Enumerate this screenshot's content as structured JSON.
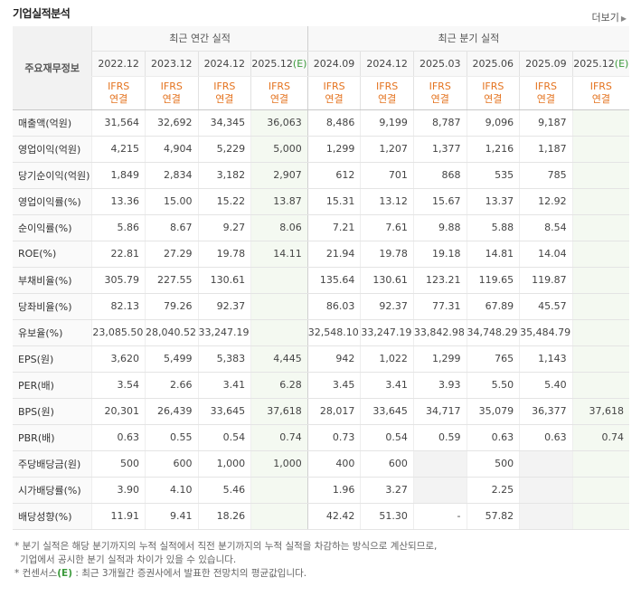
{
  "header": {
    "title": "기업실적분석",
    "more_label": "더보기"
  },
  "table": {
    "corner_label": "주요재무정보",
    "annual_group": "최근 연간 실적",
    "quarter_group": "최근 분기 실적",
    "columns": [
      {
        "period": "2022.12",
        "est": "",
        "std": "IFRS",
        "basis": "연결",
        "is_est": false
      },
      {
        "period": "2023.12",
        "est": "",
        "std": "IFRS",
        "basis": "연결",
        "is_est": false
      },
      {
        "period": "2024.12",
        "est": "",
        "std": "IFRS",
        "basis": "연결",
        "is_est": false
      },
      {
        "period": "2025.12",
        "est": "(E)",
        "std": "IFRS",
        "basis": "연결",
        "is_est": true
      },
      {
        "period": "2024.09",
        "est": "",
        "std": "IFRS",
        "basis": "연결",
        "is_est": false
      },
      {
        "period": "2024.12",
        "est": "",
        "std": "IFRS",
        "basis": "연결",
        "is_est": false
      },
      {
        "period": "2025.03",
        "est": "",
        "std": "IFRS",
        "basis": "연결",
        "is_est": false
      },
      {
        "period": "2025.06",
        "est": "",
        "std": "IFRS",
        "basis": "연결",
        "is_est": false
      },
      {
        "period": "2025.09",
        "est": "",
        "std": "IFRS",
        "basis": "연결",
        "is_est": false
      },
      {
        "period": "2025.12",
        "est": "(E)",
        "std": "IFRS",
        "basis": "연결",
        "is_est": true
      }
    ],
    "rows": [
      {
        "label": "매출액(억원)",
        "values": [
          "31,564",
          "32,692",
          "34,345",
          "36,063",
          "8,486",
          "9,199",
          "8,787",
          "9,096",
          "9,187",
          ""
        ]
      },
      {
        "label": "영업이익(억원)",
        "values": [
          "4,215",
          "4,904",
          "5,229",
          "5,000",
          "1,299",
          "1,207",
          "1,377",
          "1,216",
          "1,187",
          ""
        ]
      },
      {
        "label": "당기순이익(억원)",
        "values": [
          "1,849",
          "2,834",
          "3,182",
          "2,907",
          "612",
          "701",
          "868",
          "535",
          "785",
          ""
        ]
      },
      {
        "label": "영업이익률(%)",
        "values": [
          "13.36",
          "15.00",
          "15.22",
          "13.87",
          "15.31",
          "13.12",
          "15.67",
          "13.37",
          "12.92",
          ""
        ]
      },
      {
        "label": "순이익률(%)",
        "values": [
          "5.86",
          "8.67",
          "9.27",
          "8.06",
          "7.21",
          "7.61",
          "9.88",
          "5.88",
          "8.54",
          ""
        ]
      },
      {
        "label": "ROE(%)",
        "values": [
          "22.81",
          "27.29",
          "19.78",
          "14.11",
          "21.94",
          "19.78",
          "19.18",
          "14.81",
          "14.04",
          ""
        ]
      },
      {
        "label": "부채비율(%)",
        "values": [
          "305.79",
          "227.55",
          "130.61",
          "",
          "135.64",
          "130.61",
          "123.21",
          "119.65",
          "119.87",
          ""
        ]
      },
      {
        "label": "당좌비율(%)",
        "values": [
          "82.13",
          "79.26",
          "92.37",
          "",
          "86.03",
          "92.37",
          "77.31",
          "67.89",
          "45.57",
          ""
        ]
      },
      {
        "label": "유보율(%)",
        "values": [
          "23,085.50",
          "28,040.52",
          "33,247.19",
          "",
          "32,548.10",
          "33,247.19",
          "33,842.98",
          "34,748.29",
          "35,484.79",
          ""
        ]
      },
      {
        "label": "EPS(원)",
        "values": [
          "3,620",
          "5,499",
          "5,383",
          "4,445",
          "942",
          "1,022",
          "1,299",
          "765",
          "1,143",
          ""
        ]
      },
      {
        "label": "PER(배)",
        "values": [
          "3.54",
          "2.66",
          "3.41",
          "6.28",
          "3.45",
          "3.41",
          "3.93",
          "5.50",
          "5.40",
          ""
        ]
      },
      {
        "label": "BPS(원)",
        "values": [
          "20,301",
          "26,439",
          "33,645",
          "37,618",
          "28,017",
          "33,645",
          "34,717",
          "35,079",
          "36,377",
          "37,618"
        ]
      },
      {
        "label": "PBR(배)",
        "values": [
          "0.63",
          "0.55",
          "0.54",
          "0.74",
          "0.73",
          "0.54",
          "0.59",
          "0.63",
          "0.63",
          "0.74"
        ]
      },
      {
        "label": "주당배당금(원)",
        "values": [
          "500",
          "600",
          "1,000",
          "1,000",
          "400",
          "600",
          "",
          "500",
          "",
          ""
        ]
      },
      {
        "label": "시가배당률(%)",
        "values": [
          "3.90",
          "4.10",
          "5.46",
          "",
          "1.96",
          "3.27",
          "",
          "2.25",
          "",
          ""
        ]
      },
      {
        "label": "배당성향(%)",
        "values": [
          "11.91",
          "9.41",
          "18.26",
          "",
          "42.42",
          "51.30",
          "-",
          "57.82",
          "",
          ""
        ]
      }
    ]
  },
  "notes": {
    "line1": "분기 실적은 해당 분기까지의 누적 실적에서 직전 분기까지의 누적 실적을 차감하는 방식으로 계산되므로,",
    "line2": "기업에서 공시한 분기 실적과 차이가 있을 수 있습니다.",
    "line3_prefix": "컨센서스",
    "line3_mark": "(E)",
    "line3_rest": ": 최근 3개월간 증권사에서 발표한 전망치의 평균값입니다."
  }
}
